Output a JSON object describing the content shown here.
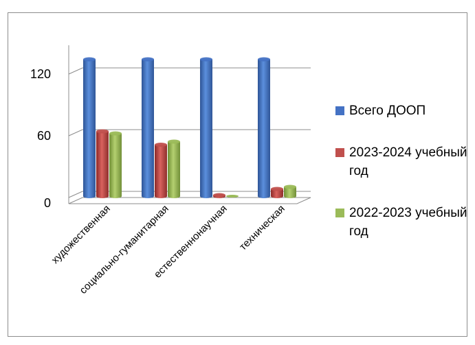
{
  "chart_data": {
    "type": "bar",
    "title": "",
    "xlabel": "",
    "ylabel": "",
    "ylim": [
      0,
      150
    ],
    "yticks": [
      0,
      60,
      120
    ],
    "grid": true,
    "legend_position": "right",
    "categories": [
      "художественная",
      "социально-гуманитарная",
      "естественнонаучная",
      "техническая"
    ],
    "series": [
      {
        "name": "Всего ДООП",
        "color": "#4472C4",
        "values": [
          133,
          133,
          133,
          133
        ]
      },
      {
        "name": "2023-2024 учебный год",
        "color": "#C0504D",
        "values": [
          63,
          50,
          1,
          7
        ]
      },
      {
        "name": "2022-2023 учебный год",
        "color": "#9BBB59",
        "values": [
          61,
          53,
          0,
          9
        ]
      }
    ]
  }
}
